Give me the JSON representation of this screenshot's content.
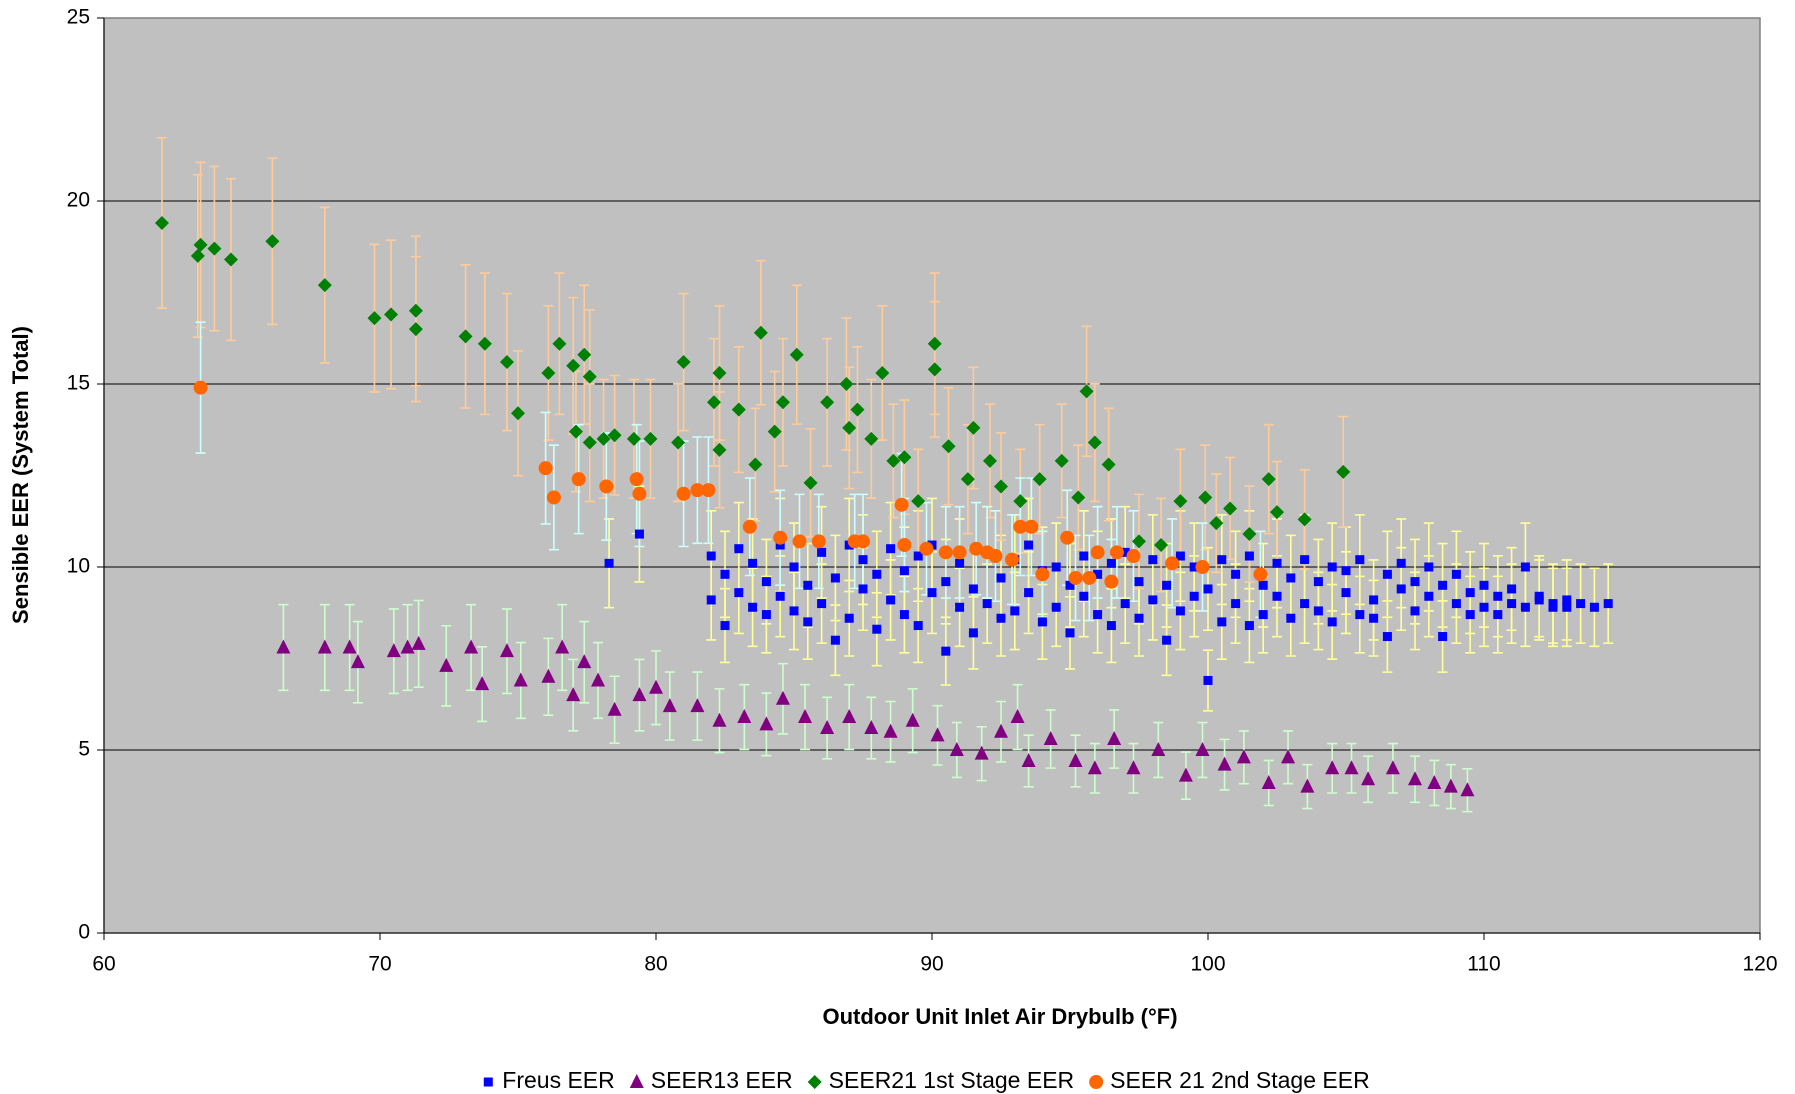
{
  "chart_data": {
    "type": "scatter",
    "x_label": "Outdoor Unit Inlet Air Drybulb (°F)",
    "y_label": "Sensible EER (System Total)",
    "xlim": [
      60,
      120
    ],
    "xticks": [
      60,
      70,
      80,
      90,
      100,
      110,
      120
    ],
    "ylim": [
      0,
      25
    ],
    "yticks": [
      0,
      5,
      10,
      15,
      20,
      25
    ],
    "grid": true,
    "plot_background": "#c0c0c0",
    "legend_position": "bottom",
    "series": [
      {
        "name": "Freus EER",
        "color": "#0000ff",
        "marker": "square",
        "error_color": "#ffff99",
        "error_percent": 12,
        "x": [
          78.3,
          79.4,
          82,
          82,
          82.5,
          82.5,
          83,
          83,
          83.5,
          83.5,
          84,
          84,
          84.5,
          84.5,
          85,
          85,
          85.5,
          85.5,
          86,
          86,
          86.5,
          86.5,
          87,
          87,
          87.5,
          87.5,
          88,
          88,
          88.5,
          88.5,
          89,
          89,
          89.5,
          89.5,
          90,
          90,
          90.5,
          90.5,
          91,
          91,
          91.5,
          91.5,
          92,
          92,
          92.5,
          92.5,
          93,
          93,
          93.5,
          93.5,
          94,
          94,
          94.5,
          94.5,
          95,
          95,
          95.5,
          95.5,
          96,
          96,
          96.5,
          96.5,
          97,
          97,
          97.5,
          97.5,
          98,
          98,
          98.5,
          98.5,
          99,
          99,
          99.5,
          99.5,
          100,
          100,
          100.5,
          100.5,
          101,
          101,
          101.5,
          101.5,
          102,
          102,
          102.5,
          102.5,
          103,
          103,
          103.5,
          103.5,
          104,
          104,
          104.5,
          104.5,
          105,
          105,
          105.5,
          105.5,
          106,
          106,
          106.5,
          106.5,
          107,
          107,
          107.5,
          107.5,
          108,
          108,
          108.5,
          108.5,
          109,
          109,
          109.5,
          109.5,
          110,
          110,
          110.5,
          110.5,
          111,
          111,
          111.5,
          111.5,
          112,
          112,
          112.5,
          112.5,
          113,
          113,
          113.5,
          114,
          114.5
        ],
        "values": [
          10.1,
          10.9,
          10.3,
          9.1,
          8.4,
          9.8,
          10.5,
          9.3,
          8.9,
          10.1,
          9.6,
          8.7,
          10.6,
          9.2,
          8.8,
          10.0,
          9.5,
          8.5,
          10.4,
          9.0,
          8.0,
          9.7,
          10.6,
          8.6,
          9.4,
          10.2,
          8.3,
          9.8,
          10.5,
          9.1,
          8.7,
          9.9,
          10.3,
          8.4,
          9.3,
          10.6,
          7.7,
          9.6,
          10.1,
          8.9,
          9.4,
          8.2,
          10.4,
          9.0,
          8.6,
          9.7,
          10.2,
          8.8,
          9.3,
          10.6,
          8.5,
          9.9,
          10.0,
          8.9,
          9.5,
          8.2,
          10.3,
          9.2,
          8.7,
          9.8,
          10.1,
          8.4,
          9.0,
          10.4,
          8.6,
          9.6,
          10.2,
          9.1,
          8.0,
          9.5,
          10.3,
          8.8,
          9.2,
          10.0,
          6.9,
          9.4,
          10.2,
          8.5,
          9.0,
          9.8,
          8.4,
          10.3,
          9.5,
          8.7,
          10.1,
          9.2,
          8.6,
          9.7,
          10.2,
          9.0,
          8.8,
          9.6,
          10.0,
          8.5,
          9.3,
          9.9,
          8.7,
          10.2,
          9.1,
          8.6,
          9.8,
          8.1,
          9.4,
          10.1,
          8.8,
          9.6,
          9.2,
          10.0,
          8.1,
          9.5,
          9.0,
          9.8,
          8.7,
          9.3,
          9.5,
          8.9,
          9.2,
          8.7,
          9.4,
          9.0,
          10.0,
          8.9,
          9.1,
          9.2,
          8.9,
          9.0,
          9.1,
          8.9,
          9.0,
          8.9,
          9.0
        ]
      },
      {
        "name": "SEER13 EER",
        "color": "#800080",
        "marker": "triangle",
        "error_color": "#ccffcc",
        "error_percent": 15,
        "x": [
          66.5,
          68,
          68.9,
          69.2,
          70.5,
          71,
          71.4,
          72.4,
          73.3,
          73.7,
          74.6,
          75.1,
          76.1,
          76.6,
          77,
          77.4,
          77.9,
          78.5,
          79.4,
          80,
          80.5,
          81.5,
          82.3,
          83.2,
          84,
          84.6,
          85.4,
          86.2,
          87,
          87.8,
          88.5,
          89.3,
          90.2,
          90.9,
          91.8,
          92.5,
          93.1,
          93.5,
          94.3,
          95.2,
          95.9,
          96.6,
          97.3,
          98.2,
          99.2,
          99.8,
          100.6,
          101.3,
          102.2,
          102.9,
          103.6,
          104.5,
          105.2,
          105.8,
          106.7,
          107.5,
          108.2,
          108.8,
          109.4
        ],
        "values": [
          7.8,
          7.8,
          7.8,
          7.4,
          7.7,
          7.8,
          7.9,
          7.3,
          7.8,
          6.8,
          7.7,
          6.9,
          7.0,
          7.8,
          6.5,
          7.4,
          6.9,
          6.1,
          6.5,
          6.7,
          6.2,
          6.2,
          5.8,
          5.9,
          5.7,
          6.4,
          5.9,
          5.6,
          5.9,
          5.6,
          5.5,
          5.8,
          5.4,
          5.0,
          4.9,
          5.5,
          5.9,
          4.7,
          5.3,
          4.7,
          4.5,
          5.3,
          4.5,
          5.0,
          4.3,
          5.0,
          4.6,
          4.8,
          4.1,
          4.8,
          4.0,
          4.5,
          4.5,
          4.2,
          4.5,
          4.2,
          4.1,
          4.0,
          3.9
        ]
      },
      {
        "name": "SEER21 1st Stage EER",
        "color": "#008000",
        "marker": "diamond",
        "error_color": "#ffcc99",
        "error_percent": 12,
        "x": [
          62.1,
          63.4,
          63.5,
          64,
          64.6,
          66.1,
          68,
          69.8,
          70.4,
          71.3,
          71.3,
          73.1,
          73.8,
          74.6,
          75,
          76.1,
          76.5,
          77,
          77.4,
          77.6,
          77.1,
          77.6,
          78.1,
          78.5,
          79.2,
          79.8,
          80.8,
          81,
          82.1,
          82.3,
          82.3,
          83,
          83.6,
          83.8,
          84.3,
          84.6,
          85.1,
          85.6,
          86.2,
          86.9,
          87,
          87.3,
          87.8,
          88.2,
          88.6,
          89,
          89.5,
          90.1,
          90.1,
          90.6,
          91.3,
          91.5,
          92.1,
          92.5,
          93.2,
          93.9,
          94.7,
          95.3,
          95.6,
          95.9,
          96.4,
          97.5,
          98.3,
          99,
          99.9,
          100.3,
          100.8,
          101.5,
          102.2,
          102.5,
          103.5,
          104.9
        ],
        "values": [
          19.4,
          18.5,
          18.8,
          18.7,
          18.4,
          18.9,
          17.7,
          16.8,
          16.9,
          17.0,
          16.5,
          16.3,
          16.1,
          15.6,
          14.2,
          15.3,
          16.1,
          15.5,
          15.8,
          15.2,
          13.7,
          13.4,
          13.5,
          13.6,
          13.5,
          13.5,
          13.4,
          15.6,
          14.5,
          15.3,
          13.2,
          14.3,
          12.8,
          16.4,
          13.7,
          14.5,
          15.8,
          12.3,
          14.5,
          15.0,
          13.8,
          14.3,
          13.5,
          15.3,
          12.9,
          13.0,
          11.8,
          16.1,
          15.4,
          13.3,
          12.4,
          13.8,
          12.9,
          12.2,
          11.8,
          12.4,
          12.9,
          11.9,
          14.8,
          13.4,
          12.8,
          10.7,
          10.6,
          11.8,
          11.9,
          11.2,
          11.6,
          10.9,
          12.4,
          11.5,
          11.3,
          12.6
        ]
      },
      {
        "name": "SEER 21 2nd Stage EER",
        "color": "#ff6600",
        "marker": "circle",
        "error_color": "#ccffff",
        "error_percent": 12,
        "x": [
          63.5,
          76,
          76.3,
          77.2,
          78.2,
          79.3,
          79.4,
          81,
          81.5,
          81.9,
          83.4,
          84.5,
          85.2,
          85.9,
          87.2,
          87.5,
          88.9,
          89,
          89.8,
          90.5,
          91,
          91.6,
          92,
          92.3,
          92.9,
          93.2,
          93.6,
          94,
          94.9,
          95.2,
          95.7,
          96,
          96.5,
          96.7,
          97.3,
          98.7,
          99.8,
          101.9
        ],
        "values": [
          14.9,
          12.7,
          11.9,
          12.4,
          12.2,
          12.4,
          12.0,
          12.0,
          12.1,
          12.1,
          11.1,
          10.8,
          10.7,
          10.7,
          10.7,
          10.7,
          11.7,
          10.6,
          10.5,
          10.4,
          10.4,
          10.5,
          10.4,
          10.3,
          10.2,
          11.1,
          11.1,
          9.8,
          10.8,
          9.7,
          9.7,
          10.4,
          9.6,
          10.4,
          10.3,
          10.1,
          10.0,
          9.8
        ]
      }
    ]
  }
}
